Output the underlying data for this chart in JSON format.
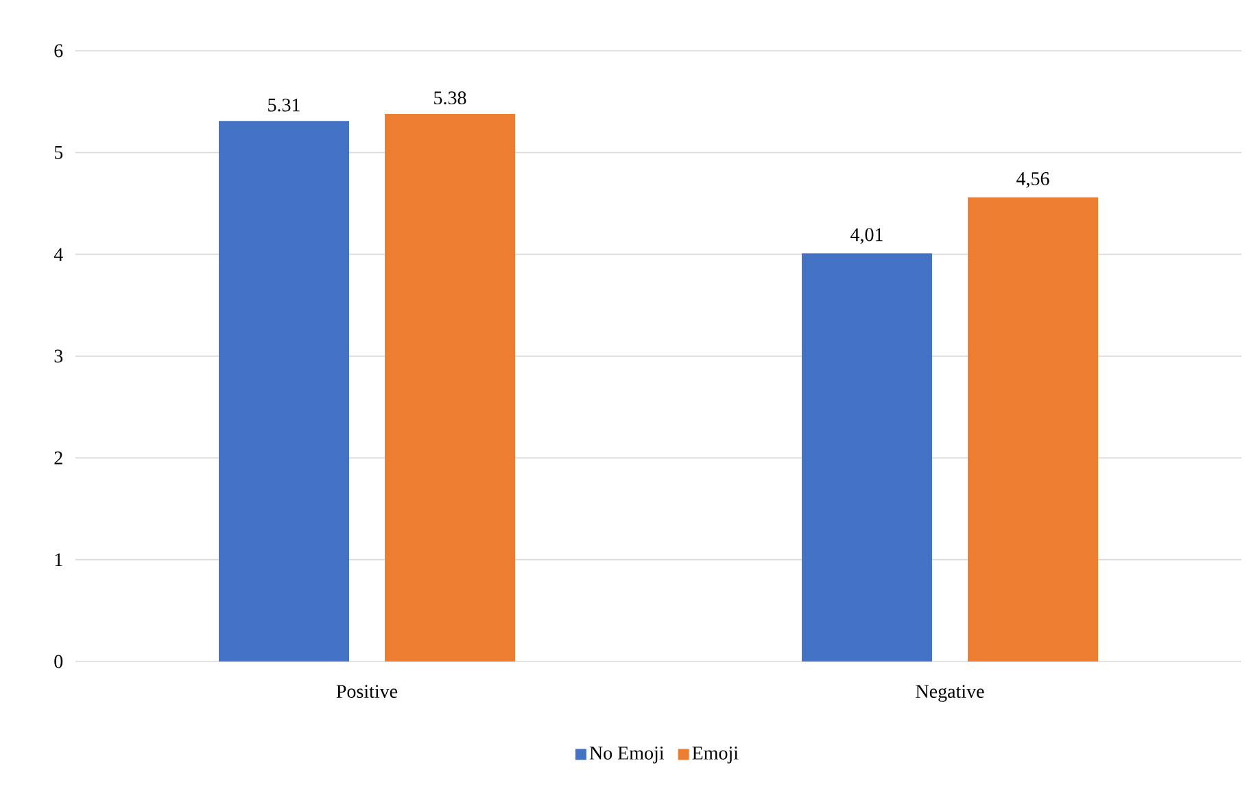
{
  "chart_data": {
    "type": "bar",
    "categories": [
      "Positive",
      "Negative"
    ],
    "series": [
      {
        "name": "No Emoji",
        "color": "#4472c4",
        "values": [
          5.31,
          4.01
        ],
        "value_labels": [
          "5.31",
          "4,01"
        ]
      },
      {
        "name": "Emoji",
        "color": "#ed7d31",
        "values": [
          5.38,
          4.56
        ],
        "value_labels": [
          "5.38",
          "4,56"
        ]
      }
    ],
    "ylim": [
      0,
      6
    ],
    "yticks": [
      0,
      1,
      2,
      3,
      4,
      5,
      6
    ],
    "grid": "y",
    "legend": "bottom"
  }
}
